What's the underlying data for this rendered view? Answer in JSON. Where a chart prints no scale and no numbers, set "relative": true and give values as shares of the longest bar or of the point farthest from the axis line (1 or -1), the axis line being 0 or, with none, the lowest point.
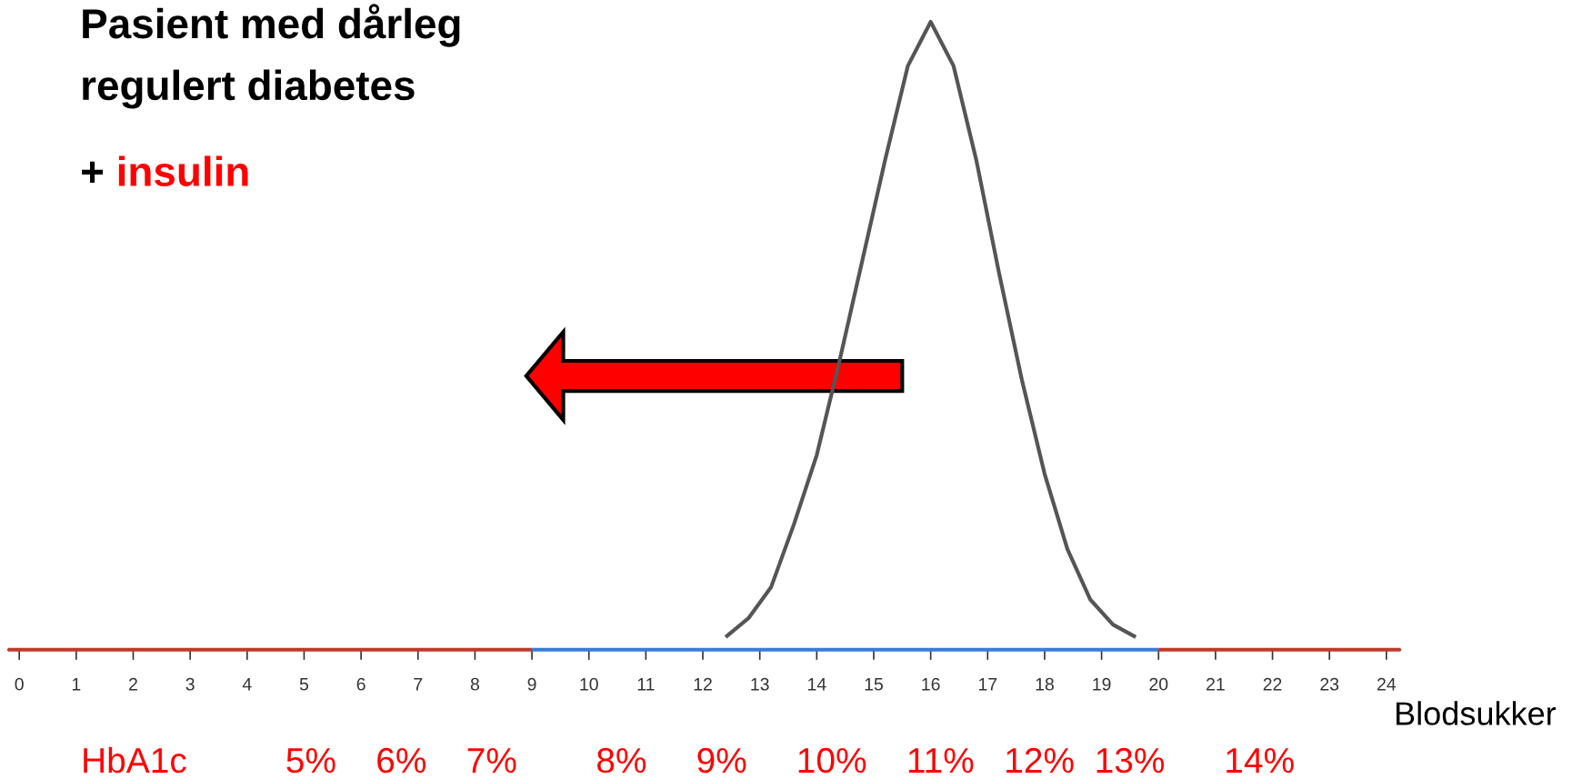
{
  "chart_data": {
    "type": "line",
    "title": "Pasient med dårleg\nregulert diabetes",
    "subtitle": "+ insulin",
    "xlabel": "Blodsukker",
    "relative": true,
    "grid": false,
    "xlim": [
      -0.2,
      24.25
    ],
    "xticks": [
      0,
      1,
      2,
      3,
      4,
      5,
      6,
      7,
      8,
      9,
      10,
      11,
      12,
      13,
      14,
      15,
      16,
      17,
      18,
      19,
      20,
      21,
      22,
      23,
      24
    ],
    "annotations": [
      "HbA1c          5%    6%    7%        8%     9%     10%    11%   12%  13%      14%"
    ],
    "series": [
      {
        "color": "#555555",
        "x": [
          12.4,
          12.8,
          13.2,
          13.6,
          14.0,
          14.4,
          14.8,
          15.2,
          15.6,
          16.0,
          16.4,
          16.8,
          17.2,
          17.6,
          18.0,
          18.4,
          18.8,
          19.2,
          19.6
        ],
        "values": [
          0.02,
          0.05,
          0.1,
          0.2,
          0.31,
          0.46,
          0.62,
          0.78,
          0.93,
          1.0,
          0.93,
          0.78,
          0.6,
          0.43,
          0.28,
          0.16,
          0.08,
          0.04,
          0.02
        ]
      },
      {
        "color": "#c0392b",
        "x": [
          -0.2,
          9
        ],
        "values": [
          0,
          0
        ]
      },
      {
        "color": "#3a7bd5",
        "x": [
          9,
          20
        ],
        "values": [
          0,
          0
        ]
      },
      {
        "color": "#c0392b",
        "x": [
          20,
          24.25
        ],
        "values": [
          0,
          0
        ]
      }
    ]
  }
}
